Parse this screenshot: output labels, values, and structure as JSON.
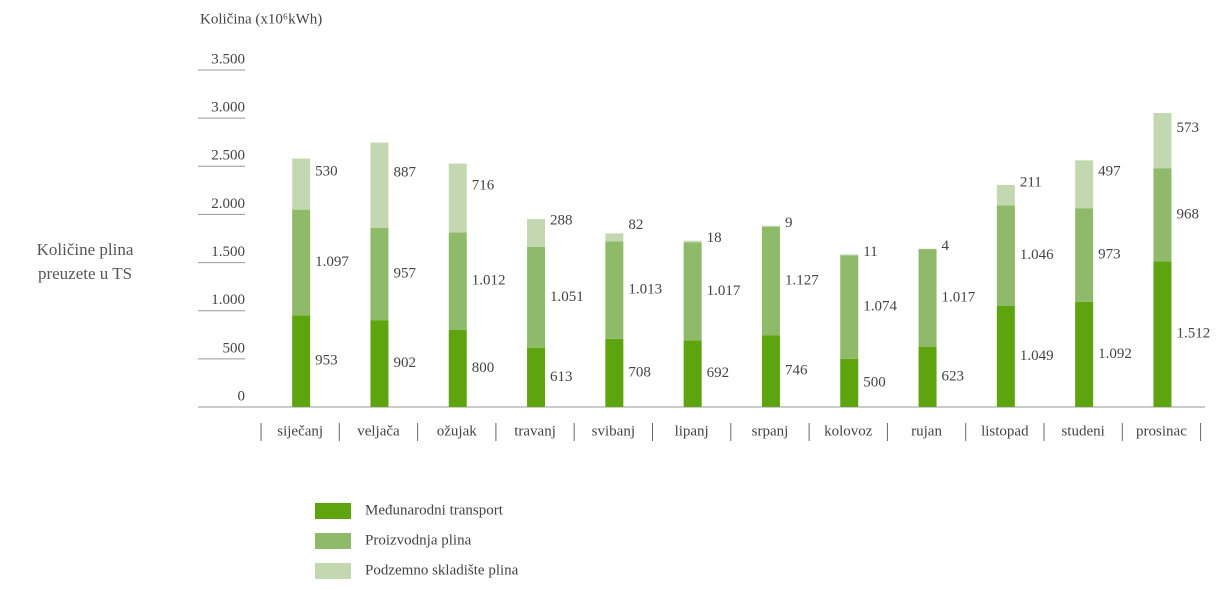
{
  "chart_data": {
    "type": "stacked_bar",
    "y_axis_label": "Količina (x10⁶kWh)",
    "side_label": "Količine plina preuzete u TS",
    "categories": [
      "siječanj",
      "veljača",
      "ožujak",
      "travanj",
      "svibanj",
      "lipanj",
      "srpanj",
      "kolovoz",
      "rujan",
      "listopad",
      "studeni",
      "prosinac"
    ],
    "series": [
      {
        "name": "Međunarodni transport",
        "color": "#5ea40f",
        "values": [
          953,
          902,
          800,
          613,
          708,
          692,
          746,
          500,
          623,
          1049,
          1092,
          1512
        ],
        "value_labels": [
          "953",
          "902",
          "800",
          "613",
          "708",
          "692",
          "746",
          "500",
          "623",
          "1.049",
          "1.092",
          "1.512"
        ]
      },
      {
        "name": "Proizvodnja plina",
        "color": "#8fba6a",
        "values": [
          1097,
          957,
          1012,
          1051,
          1013,
          1017,
          1127,
          1074,
          1017,
          1046,
          973,
          968
        ],
        "value_labels": [
          "1.097",
          "957",
          "1.012",
          "1.051",
          "1.013",
          "1.017",
          "1.127",
          "1.074",
          "1.017",
          "1.046",
          "973",
          "968"
        ]
      },
      {
        "name": "Podzemno skladište plina",
        "color": "#c3d8b1",
        "values": [
          530,
          887,
          716,
          288,
          82,
          18,
          9,
          11,
          4,
          211,
          497,
          573
        ],
        "value_labels": [
          "530",
          "887",
          "716",
          "288",
          "82",
          "18",
          "9",
          "11",
          "4",
          "211",
          "497",
          "573"
        ]
      }
    ],
    "ylim": [
      0,
      3500
    ],
    "yticks": [
      0,
      500,
      {
        "value": 1000,
        "label": "1.000"
      },
      {
        "value": 1500,
        "label": "1.500"
      },
      {
        "value": 2000,
        "label": "2.000"
      },
      {
        "value": 2500,
        "label": "2.500"
      },
      {
        "value": 3000,
        "label": "3.000"
      },
      {
        "value": 3500,
        "label": "3.500"
      }
    ],
    "label_color": "#6aab1e"
  }
}
